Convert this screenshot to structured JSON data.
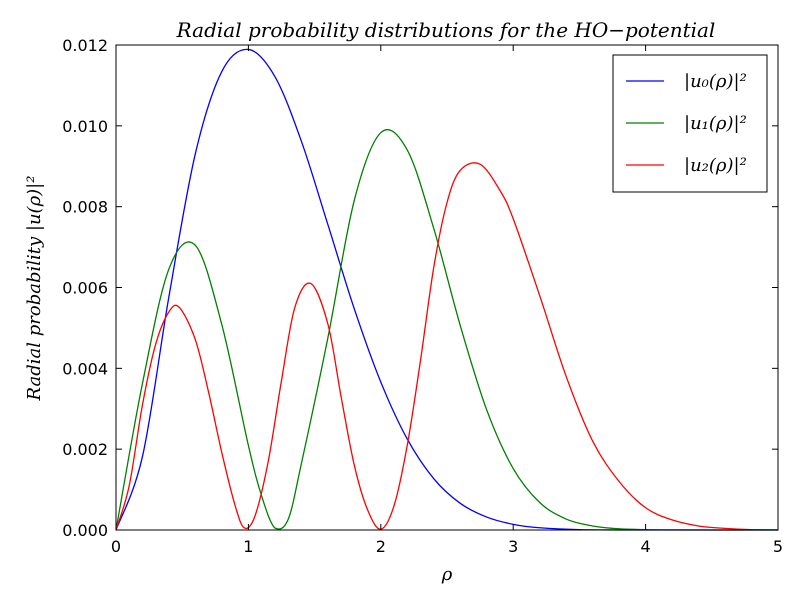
{
  "chart_data": {
    "type": "line",
    "title": "Radial probability distributions for the HO−potential",
    "xlabel": "ρ",
    "ylabel": "Radial probability |u(ρ)|²",
    "xlim": [
      0,
      5
    ],
    "ylim": [
      0,
      0.012
    ],
    "xticks": [
      0,
      1,
      2,
      3,
      4,
      5
    ],
    "xtick_labels": [
      "0",
      "1",
      "2",
      "3",
      "4",
      "5"
    ],
    "yticks": [
      0,
      0.002,
      0.004,
      0.006,
      0.008,
      0.01,
      0.012
    ],
    "ytick_labels": [
      "0.000",
      "0.002",
      "0.004",
      "0.006",
      "0.008",
      "0.010",
      "0.012"
    ],
    "grid": false,
    "legend_position": "top-right",
    "series": [
      {
        "name": "|u₀(ρ)|²",
        "color": "#0000ff",
        "x": [
          0,
          0.2,
          0.4,
          0.6,
          0.8,
          1.0,
          1.2,
          1.4,
          1.6,
          1.8,
          2.0,
          2.2,
          2.4,
          2.6,
          2.8,
          3.0,
          3.2,
          3.5,
          4.0,
          4.5,
          5.0
        ],
        "y": [
          0,
          0.00182,
          0.00578,
          0.00932,
          0.01135,
          0.01189,
          0.01122,
          0.00962,
          0.00756,
          0.00547,
          0.00366,
          0.00225,
          0.00127,
          0.00066,
          0.00032,
          0.00014,
          5.5e-05,
          1e-05,
          3e-07,
          0,
          0
        ]
      },
      {
        "name": "|u₁(ρ)|²",
        "color": "#008000",
        "x": [
          0,
          0.2,
          0.4,
          0.6,
          0.8,
          1.0,
          1.1,
          1.2,
          1.3,
          1.4,
          1.6,
          1.8,
          2.0,
          2.2,
          2.4,
          2.6,
          2.8,
          3.0,
          3.2,
          3.4,
          3.6,
          3.8,
          4.0,
          4.2,
          4.5,
          5.0
        ],
        "y": [
          0,
          0.00363,
          0.00646,
          0.00704,
          0.00507,
          0.00209,
          0.00084,
          5e-05,
          0.00026,
          0.00164,
          0.00475,
          0.00816,
          0.00983,
          0.0094,
          0.00746,
          0.00506,
          0.00297,
          0.00152,
          0.00068,
          0.00027,
          0.0001,
          3e-05,
          1e-05,
          3e-06,
          3e-07,
          0
        ]
      },
      {
        "name": "|u₂(ρ)|²",
        "color": "#ff0000",
        "x": [
          0,
          0.1,
          0.2,
          0.3,
          0.4,
          0.48,
          0.6,
          0.7,
          0.8,
          0.9,
          0.97,
          1.05,
          1.15,
          1.25,
          1.35,
          1.47,
          1.6,
          1.7,
          1.8,
          1.9,
          2.0,
          2.1,
          2.2,
          2.3,
          2.4,
          2.5,
          2.6,
          2.75,
          2.9,
          3.0,
          3.2,
          3.4,
          3.6,
          3.8,
          4.0,
          4.2,
          4.4,
          4.6,
          4.8,
          5.0
        ],
        "y": [
          0,
          0.0011,
          0.0031,
          0.0046,
          0.0054,
          0.0055,
          0.0047,
          0.0034,
          0.0019,
          0.0006,
          5e-05,
          0.00035,
          0.0017,
          0.0037,
          0.0055,
          0.0061,
          0.0051,
          0.0033,
          0.0016,
          0.0005,
          2e-05,
          0.0006,
          0.0021,
          0.0042,
          0.0065,
          0.0081,
          0.0089,
          0.00905,
          0.0084,
          0.0077,
          0.0058,
          0.0038,
          0.0022,
          0.0012,
          0.00055,
          0.00025,
          0.0001,
          4e-05,
          1e-05,
          3e-06
        ]
      }
    ]
  }
}
